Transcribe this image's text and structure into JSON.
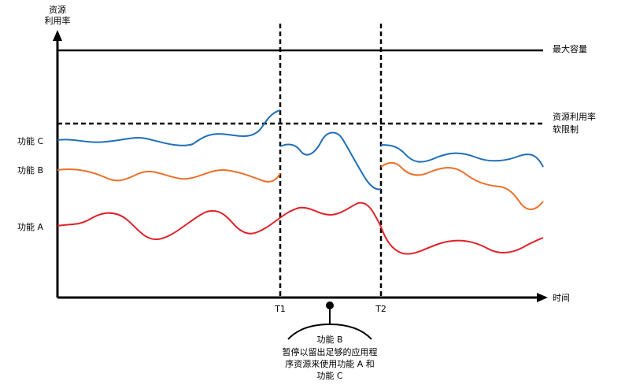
{
  "axes": {
    "y_label_line1": "资源",
    "y_label_line2": "利用率",
    "x_label": "时间"
  },
  "lines": {
    "max_capacity": "最大容量",
    "soft_limit_line1": "资源利用率",
    "soft_limit_line2": "软限制"
  },
  "markers": {
    "t1": "T1",
    "t2": "T2"
  },
  "series": {
    "c": {
      "label": "功能 C",
      "color": "#1f6fb8"
    },
    "b": {
      "label": "功能 B",
      "color": "#ec7028"
    },
    "a": {
      "label": "功能 A",
      "color": "#e0222a"
    }
  },
  "callout": {
    "title": "功能 B",
    "line1": "暂停以留出足够的应用程",
    "line2": "序资源来使用功能 A 和",
    "line3": "功能 C"
  }
}
